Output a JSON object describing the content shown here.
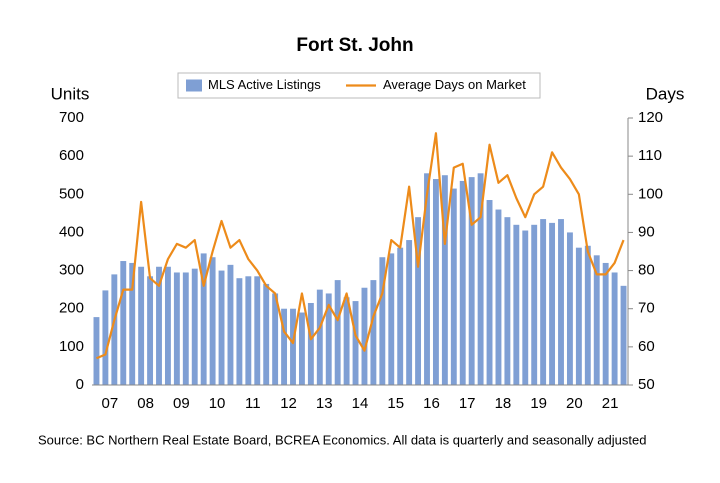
{
  "chart_data": {
    "type": "bar_line",
    "title": "Fort St. John",
    "y_label": "Units",
    "y2_label": "Days",
    "source": "Source: BC Northern Real Estate Board, BCREA Economics. All data is quarterly and seasonally adjusted",
    "categories": [
      null,
      null,
      "07",
      null,
      null,
      null,
      "08",
      null,
      null,
      null,
      "09",
      null,
      null,
      null,
      "10",
      null,
      null,
      null,
      "11",
      null,
      null,
      null,
      "12",
      null,
      null,
      null,
      "13",
      null,
      null,
      null,
      "14",
      null,
      null,
      null,
      "15",
      null,
      null,
      null,
      "16",
      null,
      null,
      null,
      "17",
      null,
      null,
      null,
      "18",
      null,
      null,
      null,
      "19",
      null,
      null,
      null,
      "20",
      null,
      null,
      null,
      "21",
      null
    ],
    "series": [
      {
        "name": "MLS Active Listings",
        "color": "#7f9fd4",
        "axis": "y",
        "values": [
          178,
          248,
          290,
          325,
          320,
          310,
          285,
          310,
          310,
          295,
          295,
          305,
          345,
          335,
          300,
          315,
          280,
          285,
          285,
          265,
          240,
          200,
          200,
          190,
          215,
          250,
          240,
          275,
          230,
          220,
          255,
          275,
          335,
          345,
          360,
          380,
          440,
          555,
          540,
          550,
          515,
          535,
          545,
          555,
          485,
          460,
          440,
          420,
          405,
          420,
          435,
          425,
          435,
          400,
          360,
          365,
          340,
          320,
          295,
          260
        ]
      },
      {
        "name": "Average Days on Market",
        "color": "#ed8b1a",
        "axis": "y2",
        "values": [
          57,
          58,
          67,
          75,
          75,
          98,
          78,
          76,
          83,
          87,
          86,
          88,
          76,
          85,
          93,
          86,
          88,
          83,
          80,
          76,
          74,
          64,
          61,
          74,
          62,
          65,
          71,
          67,
          74,
          63,
          59,
          68,
          74,
          88,
          86,
          102,
          81,
          100,
          116,
          87,
          107,
          108,
          92,
          94,
          113,
          103,
          105,
          99,
          94,
          100,
          102,
          111,
          107,
          104,
          100,
          85,
          79,
          79,
          82,
          88
        ]
      }
    ],
    "ylim": [
      0,
      700
    ],
    "yticks": [
      0,
      100,
      200,
      300,
      400,
      500,
      600,
      700
    ],
    "y2lim": [
      50,
      120
    ],
    "y2ticks": [
      50,
      60,
      70,
      80,
      90,
      100,
      110,
      120
    ],
    "legend": "top",
    "grid": false
  }
}
